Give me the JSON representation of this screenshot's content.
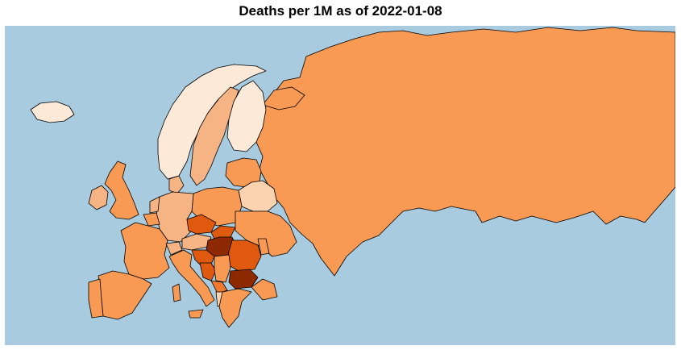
{
  "title": "Deaths per 1M as of  2022-01-08",
  "colors": {
    "sea": "#a8cbe0",
    "lightest": "#fde9d7",
    "light": "#fbd3b0",
    "mid_light": "#f6b383",
    "mid": "#f89a54",
    "mid_dark": "#ef7a2f",
    "dark": "#df5a0e",
    "darkest": "#8e2a03"
  },
  "countries": [
    {
      "name": "russia",
      "shade": "mid"
    },
    {
      "name": "iceland",
      "shade": "lightest"
    },
    {
      "name": "norway",
      "shade": "lightest"
    },
    {
      "name": "sweden",
      "shade": "mid_light"
    },
    {
      "name": "finland",
      "shade": "lightest"
    },
    {
      "name": "uk",
      "shade": "mid"
    },
    {
      "name": "ireland",
      "shade": "mid_light"
    },
    {
      "name": "denmark",
      "shade": "mid_light"
    },
    {
      "name": "baltics",
      "shade": "mid"
    },
    {
      "name": "belarus",
      "shade": "light"
    },
    {
      "name": "poland",
      "shade": "mid"
    },
    {
      "name": "germany",
      "shade": "mid_light"
    },
    {
      "name": "netherlands",
      "shade": "mid_light"
    },
    {
      "name": "belgium",
      "shade": "mid"
    },
    {
      "name": "france",
      "shade": "mid"
    },
    {
      "name": "spain",
      "shade": "mid"
    },
    {
      "name": "portugal",
      "shade": "mid"
    },
    {
      "name": "switzerland",
      "shade": "mid_light"
    },
    {
      "name": "austria",
      "shade": "mid_light"
    },
    {
      "name": "czechia",
      "shade": "dark"
    },
    {
      "name": "slovakia",
      "shade": "dark"
    },
    {
      "name": "hungary",
      "shade": "darkest"
    },
    {
      "name": "ukraine",
      "shade": "mid"
    },
    {
      "name": "romania",
      "shade": "dark"
    },
    {
      "name": "moldova",
      "shade": "mid"
    },
    {
      "name": "slovenia_croatia",
      "shade": "dark"
    },
    {
      "name": "bosnia",
      "shade": "dark"
    },
    {
      "name": "serbia",
      "shade": "mid"
    },
    {
      "name": "bulgaria",
      "shade": "darkest"
    },
    {
      "name": "montenegro_kosovo",
      "shade": "mid_dark"
    },
    {
      "name": "albania",
      "shade": "light"
    },
    {
      "name": "greece",
      "shade": "mid"
    },
    {
      "name": "italy",
      "shade": "mid"
    },
    {
      "name": "turkey_edge",
      "shade": "mid"
    }
  ]
}
